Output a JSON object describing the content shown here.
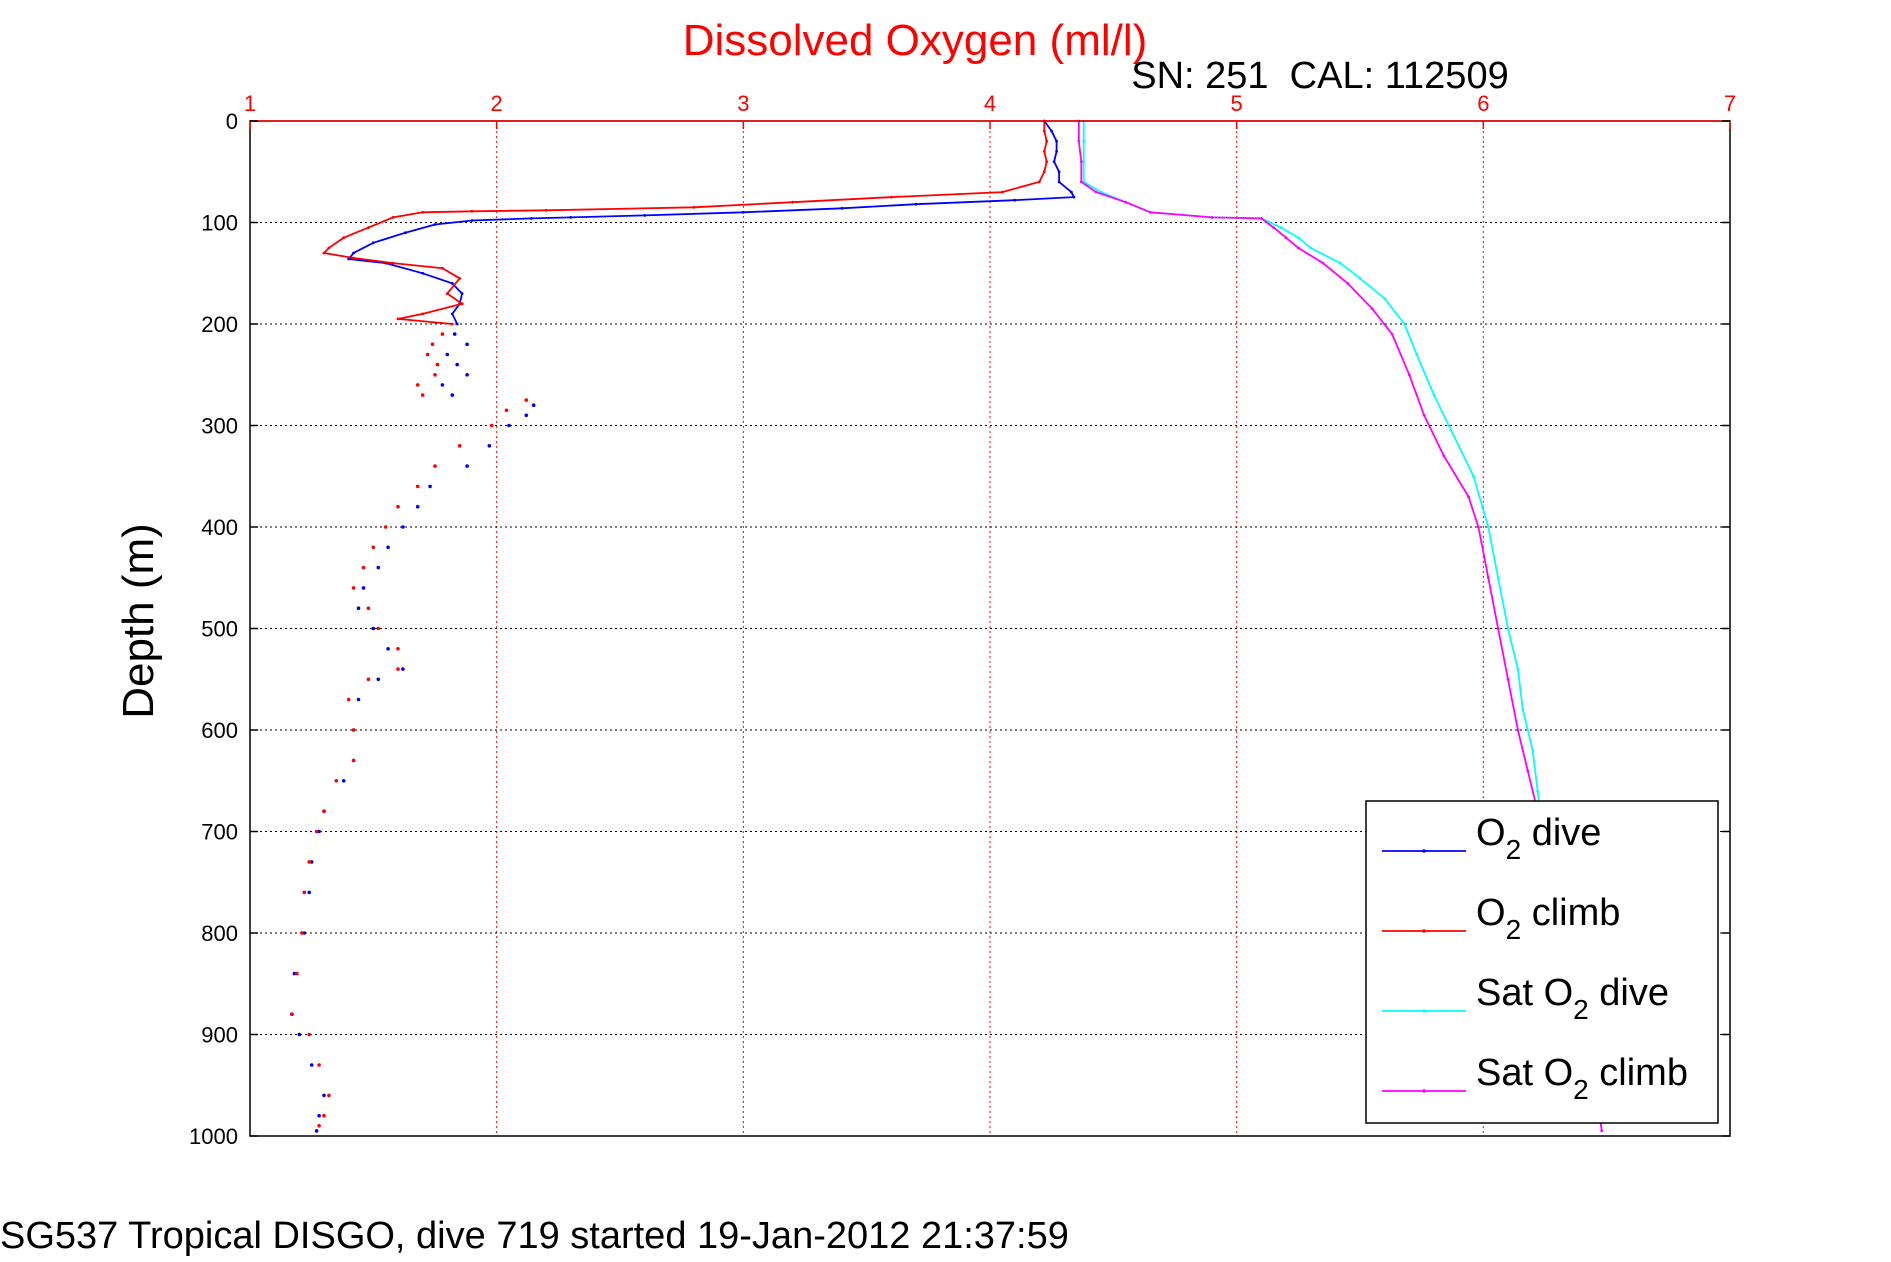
{
  "chart_data": {
    "type": "line",
    "title": "Dissolved Oxygen (ml/l)",
    "subtitle": "SN: 251  CAL: 112509",
    "ylabel": "Depth (m)",
    "footer": "SG537 Tropical DISGO, dive 719 started 19-Jan-2012 21:37:59",
    "xlim": [
      1,
      7
    ],
    "ylim": [
      0,
      1000
    ],
    "y_reversed": true,
    "x_axis_position": "top",
    "xticks": [
      "1",
      "2",
      "3",
      "4",
      "5",
      "6",
      "7"
    ],
    "yticks": [
      "0",
      "100",
      "200",
      "300",
      "400",
      "500",
      "600",
      "700",
      "800",
      "900",
      "1000"
    ],
    "grid": true,
    "legend_position": "bottom-right",
    "legend": [
      {
        "sym": "O",
        "sub": "2",
        "rest": " dive"
      },
      {
        "sym": "O",
        "sub": "2",
        "rest": " climb"
      },
      {
        "sym": "Sat O",
        "sub": "2",
        "rest": " dive"
      },
      {
        "sym": "Sat O",
        "sub": "2",
        "rest": " climb"
      }
    ],
    "colors": {
      "title": "#ff0000",
      "x_ticks": "#ff0000",
      "o2_dive": "#0000ff",
      "o2_climb": "#ff0000",
      "sat_dive": "#00ffff",
      "sat_climb": "#ff00ff"
    },
    "series": [
      {
        "key": "o2_dive",
        "style": "line",
        "points": [
          [
            4.22,
            0
          ],
          [
            4.25,
            10
          ],
          [
            4.27,
            20
          ],
          [
            4.27,
            30
          ],
          [
            4.26,
            40
          ],
          [
            4.28,
            50
          ],
          [
            4.28,
            60
          ],
          [
            4.33,
            70
          ],
          [
            4.34,
            75
          ],
          [
            4.1,
            78
          ],
          [
            3.7,
            82
          ],
          [
            3.4,
            86
          ],
          [
            3.0,
            90
          ],
          [
            2.6,
            93
          ],
          [
            2.3,
            95
          ],
          [
            2.14,
            96
          ],
          [
            1.9,
            98
          ],
          [
            1.75,
            102
          ],
          [
            1.63,
            110
          ],
          [
            1.5,
            120
          ],
          [
            1.42,
            130
          ],
          [
            1.4,
            136
          ],
          [
            1.55,
            140
          ],
          [
            1.7,
            150
          ],
          [
            1.82,
            160
          ],
          [
            1.86,
            170
          ],
          [
            1.85,
            180
          ],
          [
            1.82,
            190
          ],
          [
            1.84,
            200
          ]
        ]
      },
      {
        "key": "o2_dive",
        "style": "dots",
        "points": [
          [
            1.83,
            210
          ],
          [
            1.88,
            220
          ],
          [
            1.8,
            230
          ],
          [
            1.84,
            240
          ],
          [
            1.88,
            250
          ],
          [
            1.78,
            260
          ],
          [
            1.82,
            270
          ],
          [
            2.15,
            280
          ],
          [
            2.12,
            290
          ],
          [
            2.05,
            300
          ],
          [
            1.97,
            320
          ],
          [
            1.88,
            340
          ],
          [
            1.73,
            360
          ],
          [
            1.68,
            380
          ],
          [
            1.62,
            400
          ],
          [
            1.56,
            420
          ],
          [
            1.52,
            440
          ],
          [
            1.46,
            460
          ],
          [
            1.44,
            480
          ],
          [
            1.5,
            500
          ],
          [
            1.56,
            520
          ],
          [
            1.62,
            540
          ],
          [
            1.52,
            550
          ],
          [
            1.44,
            570
          ],
          [
            1.42,
            600
          ],
          [
            1.42,
            630
          ],
          [
            1.38,
            650
          ],
          [
            1.3,
            680
          ],
          [
            1.28,
            700
          ],
          [
            1.25,
            730
          ],
          [
            1.24,
            760
          ],
          [
            1.22,
            800
          ],
          [
            1.18,
            840
          ],
          [
            1.17,
            880
          ],
          [
            1.2,
            900
          ],
          [
            1.25,
            930
          ],
          [
            1.3,
            960
          ],
          [
            1.28,
            980
          ],
          [
            1.27,
            995
          ]
        ]
      },
      {
        "key": "o2_climb",
        "style": "line",
        "points": [
          [
            4.22,
            0
          ],
          [
            4.22,
            10
          ],
          [
            4.23,
            20
          ],
          [
            4.22,
            30
          ],
          [
            4.23,
            40
          ],
          [
            4.22,
            50
          ],
          [
            4.2,
            60
          ],
          [
            4.05,
            70
          ],
          [
            3.6,
            75
          ],
          [
            3.2,
            80
          ],
          [
            2.8,
            85
          ],
          [
            2.2,
            88
          ],
          [
            1.9,
            89
          ],
          [
            1.7,
            90
          ],
          [
            1.58,
            95
          ],
          [
            1.48,
            105
          ],
          [
            1.38,
            115
          ],
          [
            1.32,
            125
          ],
          [
            1.3,
            130
          ],
          [
            1.42,
            135
          ],
          [
            1.58,
            140
          ],
          [
            1.78,
            145
          ],
          [
            1.85,
            155
          ],
          [
            1.8,
            170
          ],
          [
            1.86,
            180
          ],
          [
            1.7,
            190
          ],
          [
            1.6,
            195
          ],
          [
            1.82,
            200
          ]
        ]
      },
      {
        "key": "o2_climb",
        "style": "dots",
        "points": [
          [
            1.78,
            210
          ],
          [
            1.74,
            220
          ],
          [
            1.72,
            230
          ],
          [
            1.76,
            240
          ],
          [
            1.75,
            250
          ],
          [
            1.68,
            260
          ],
          [
            1.7,
            270
          ],
          [
            2.12,
            275
          ],
          [
            2.04,
            285
          ],
          [
            1.98,
            300
          ],
          [
            1.85,
            320
          ],
          [
            1.75,
            340
          ],
          [
            1.68,
            360
          ],
          [
            1.6,
            380
          ],
          [
            1.55,
            400
          ],
          [
            1.5,
            420
          ],
          [
            1.46,
            440
          ],
          [
            1.42,
            460
          ],
          [
            1.48,
            480
          ],
          [
            1.52,
            500
          ],
          [
            1.6,
            520
          ],
          [
            1.6,
            540
          ],
          [
            1.48,
            550
          ],
          [
            1.4,
            570
          ],
          [
            1.42,
            600
          ],
          [
            1.42,
            630
          ],
          [
            1.35,
            650
          ],
          [
            1.3,
            680
          ],
          [
            1.27,
            700
          ],
          [
            1.24,
            730
          ],
          [
            1.22,
            760
          ],
          [
            1.21,
            800
          ],
          [
            1.19,
            840
          ],
          [
            1.17,
            880
          ],
          [
            1.24,
            900
          ],
          [
            1.28,
            930
          ],
          [
            1.32,
            960
          ],
          [
            1.3,
            980
          ],
          [
            1.28,
            990
          ]
        ]
      },
      {
        "key": "sat_dive",
        "style": "line",
        "points": [
          [
            4.38,
            0
          ],
          [
            4.38,
            20
          ],
          [
            4.38,
            40
          ],
          [
            4.38,
            60
          ],
          [
            4.45,
            70
          ],
          [
            4.55,
            80
          ],
          [
            4.65,
            90
          ],
          [
            4.9,
            95
          ],
          [
            5.1,
            96
          ],
          [
            5.18,
            105
          ],
          [
            5.25,
            115
          ],
          [
            5.3,
            125
          ],
          [
            5.42,
            140
          ],
          [
            5.5,
            155
          ],
          [
            5.6,
            175
          ],
          [
            5.68,
            200
          ],
          [
            5.73,
            230
          ],
          [
            5.8,
            270
          ],
          [
            5.86,
            300
          ],
          [
            5.96,
            350
          ],
          [
            6.02,
            400
          ],
          [
            6.06,
            450
          ],
          [
            6.1,
            500
          ],
          [
            6.14,
            540
          ],
          [
            6.16,
            580
          ],
          [
            6.2,
            620
          ],
          [
            6.22,
            660
          ],
          [
            6.24,
            700
          ]
        ]
      },
      {
        "key": "sat_climb",
        "style": "line",
        "points": [
          [
            4.36,
            0
          ],
          [
            4.36,
            20
          ],
          [
            4.37,
            40
          ],
          [
            4.37,
            60
          ],
          [
            4.43,
            70
          ],
          [
            4.55,
            80
          ],
          [
            4.65,
            90
          ],
          [
            4.9,
            95
          ],
          [
            5.1,
            96
          ],
          [
            5.15,
            105
          ],
          [
            5.2,
            115
          ],
          [
            5.25,
            125
          ],
          [
            5.35,
            140
          ],
          [
            5.45,
            160
          ],
          [
            5.55,
            185
          ],
          [
            5.63,
            210
          ],
          [
            5.7,
            250
          ],
          [
            5.76,
            290
          ],
          [
            5.84,
            330
          ],
          [
            5.94,
            370
          ],
          [
            5.98,
            400
          ],
          [
            6.02,
            450
          ],
          [
            6.06,
            500
          ],
          [
            6.1,
            550
          ],
          [
            6.14,
            600
          ],
          [
            6.18,
            640
          ],
          [
            6.22,
            680
          ],
          [
            6.3,
            760
          ],
          [
            6.38,
            840
          ],
          [
            6.44,
            920
          ],
          [
            6.48,
            995
          ]
        ]
      }
    ]
  }
}
